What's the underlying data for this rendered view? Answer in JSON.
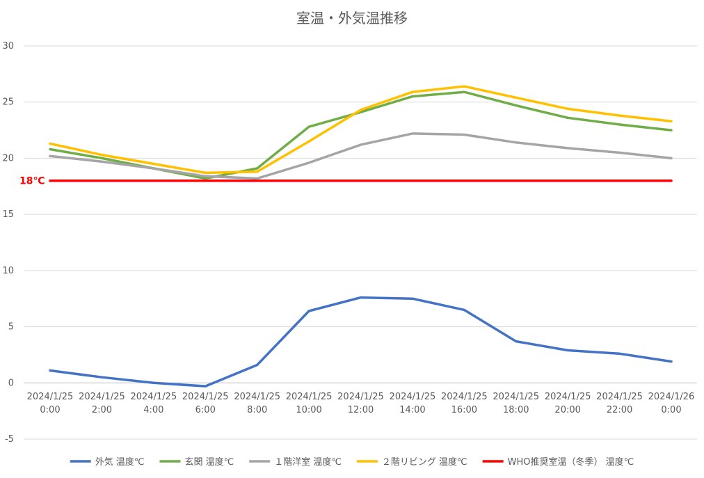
{
  "chart_data": {
    "type": "line",
    "title": "室温・外気温推移",
    "xlabel": "",
    "ylabel": "",
    "ylim": [
      -5,
      30
    ],
    "yticks": [
      -5,
      0,
      5,
      10,
      15,
      20,
      25,
      30
    ],
    "grid": true,
    "legend_position": "bottom",
    "categories": [
      [
        "2024/1/25",
        "0:00"
      ],
      [
        "2024/1/25",
        "2:00"
      ],
      [
        "2024/1/25",
        "4:00"
      ],
      [
        "2024/1/25",
        "6:00"
      ],
      [
        "2024/1/25",
        "8:00"
      ],
      [
        "2024/1/25",
        "10:00"
      ],
      [
        "2024/1/25",
        "12:00"
      ],
      [
        "2024/1/25",
        "14:00"
      ],
      [
        "2024/1/25",
        "16:00"
      ],
      [
        "2024/1/25",
        "18:00"
      ],
      [
        "2024/1/25",
        "20:00"
      ],
      [
        "2024/1/25",
        "22:00"
      ],
      [
        "2024/1/26",
        "0:00"
      ]
    ],
    "series": [
      {
        "name": "外気 温度℃",
        "color": "#4472C4",
        "values": [
          1.1,
          0.5,
          0.0,
          -0.3,
          1.6,
          6.4,
          7.6,
          7.5,
          6.5,
          3.7,
          2.9,
          2.6,
          1.9
        ]
      },
      {
        "name": "玄関 温度℃",
        "color": "#70AD47",
        "values": [
          20.8,
          20.0,
          19.1,
          18.2,
          19.1,
          22.8,
          24.1,
          25.5,
          25.9,
          24.7,
          23.6,
          23.0,
          22.5
        ]
      },
      {
        "name": "１階洋室 温度℃",
        "color": "#A5A5A5",
        "values": [
          20.2,
          19.7,
          19.1,
          18.4,
          18.2,
          19.6,
          21.2,
          22.2,
          22.1,
          21.4,
          20.9,
          20.5,
          20.0
        ]
      },
      {
        "name": "２階リビング 温度℃",
        "color": "#FFC000",
        "values": [
          21.3,
          20.3,
          19.5,
          18.7,
          18.8,
          21.5,
          24.3,
          25.9,
          26.4,
          25.4,
          24.4,
          23.8,
          23.3
        ]
      },
      {
        "name": "WHO推奨室温（冬季） 温度℃",
        "color": "#FF0000",
        "values": [
          18,
          18,
          18,
          18,
          18,
          18,
          18,
          18,
          18,
          18,
          18,
          18,
          18
        ]
      }
    ],
    "annotations": [
      {
        "text": "18℃",
        "y": 18,
        "color": "#FF0000"
      }
    ]
  }
}
